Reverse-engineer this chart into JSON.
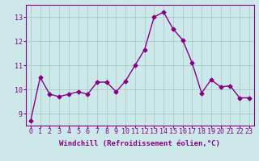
{
  "x": [
    0,
    1,
    2,
    3,
    4,
    5,
    6,
    7,
    8,
    9,
    10,
    11,
    12,
    13,
    14,
    15,
    16,
    17,
    18,
    19,
    20,
    21,
    22,
    23
  ],
  "y": [
    8.7,
    10.5,
    9.8,
    9.7,
    9.8,
    9.9,
    9.8,
    10.3,
    10.3,
    9.9,
    10.35,
    11.0,
    11.65,
    13.0,
    13.2,
    12.5,
    12.05,
    11.1,
    9.85,
    10.4,
    10.1,
    10.15,
    9.65,
    9.65
  ],
  "line_color": "#880088",
  "marker": "D",
  "marker_size": 2.5,
  "bg_color": "#cce8e8",
  "grid_color": "#aacccc",
  "xlabel": "Windchill (Refroidissement éolien,°C)",
  "ylabel": "",
  "xlim": [
    -0.5,
    23.5
  ],
  "ylim": [
    8.5,
    13.5
  ],
  "yticks": [
    9,
    10,
    11,
    12,
    13
  ],
  "xticks": [
    0,
    1,
    2,
    3,
    4,
    5,
    6,
    7,
    8,
    9,
    10,
    11,
    12,
    13,
    14,
    15,
    16,
    17,
    18,
    19,
    20,
    21,
    22,
    23
  ],
  "tick_fontsize": 6,
  "label_fontsize": 6.5,
  "linewidth": 1.0
}
